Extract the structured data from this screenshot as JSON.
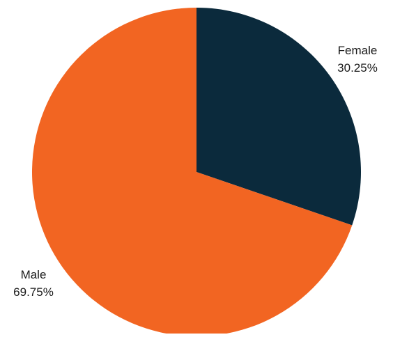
{
  "chart_data": {
    "type": "pie",
    "title": "",
    "slices": [
      {
        "label": "Female",
        "value_label": "30.25%",
        "value": 30.25,
        "color": "#0b2a3c"
      },
      {
        "label": "Male",
        "value_label": "69.75%",
        "value": 69.75,
        "color": "#f26522"
      }
    ],
    "start_angle": "12 o'clock",
    "direction": "clockwise",
    "legend": "none"
  }
}
